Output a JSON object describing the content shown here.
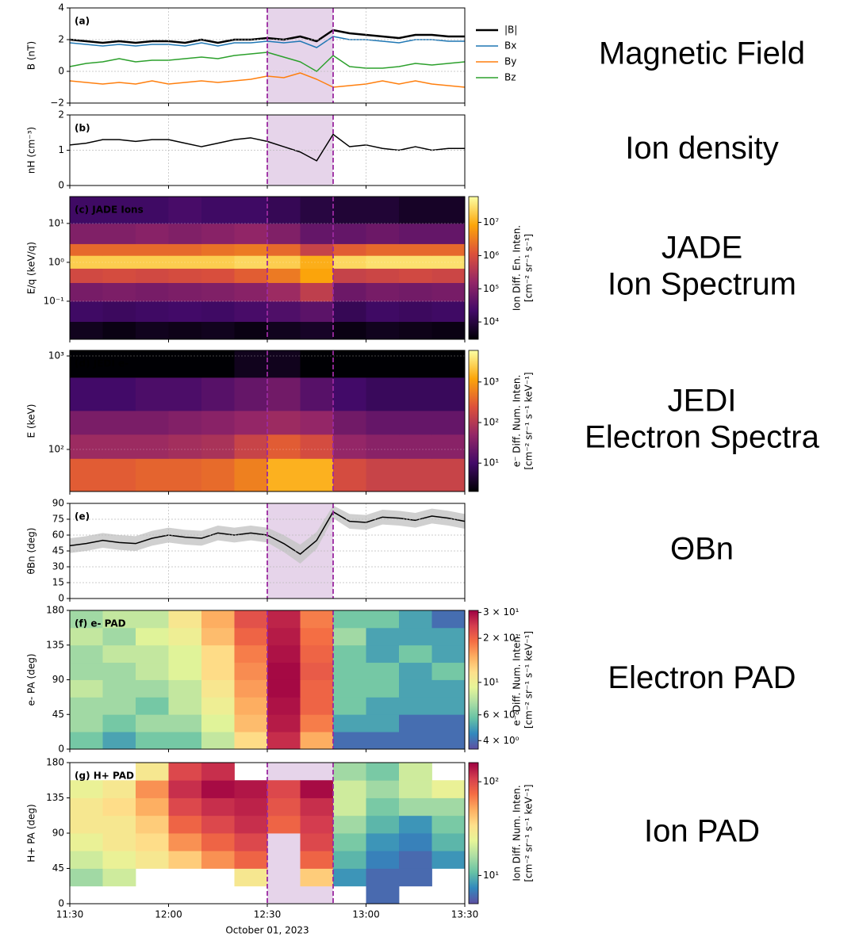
{
  "chart_data": [
    {
      "type": "line",
      "panel_label": "(a)",
      "ylabel": "B (nT)",
      "ylim": [
        -2,
        4
      ],
      "yticks": [
        {
          "value": -2,
          "label": "−2"
        },
        0,
        2,
        4
      ],
      "grid": true,
      "legend": "right-outside",
      "x": [
        "11:30",
        "11:35",
        "11:40",
        "11:45",
        "11:50",
        "11:55",
        "12:00",
        "12:05",
        "12:10",
        "12:15",
        "12:20",
        "12:25",
        "12:30",
        "12:35",
        "12:40",
        "12:45",
        "12:50",
        "12:55",
        "13:00",
        "13:05",
        "13:10",
        "13:15",
        "13:20",
        "13:25",
        "13:30"
      ],
      "series": [
        {
          "name": "|B|",
          "color": "#000000",
          "width": 2.5,
          "values": [
            2.0,
            1.9,
            1.8,
            1.9,
            1.8,
            1.9,
            1.9,
            1.8,
            2.0,
            1.8,
            2.0,
            2.0,
            2.1,
            2.0,
            2.2,
            1.9,
            2.6,
            2.4,
            2.3,
            2.2,
            2.1,
            2.3,
            2.3,
            2.2,
            2.2
          ]
        },
        {
          "name": "Bx",
          "color": "#1f77b4",
          "width": 1.5,
          "values": [
            1.8,
            1.7,
            1.6,
            1.7,
            1.6,
            1.7,
            1.7,
            1.6,
            1.8,
            1.6,
            1.8,
            1.8,
            1.9,
            1.8,
            1.9,
            1.5,
            2.2,
            2.0,
            2.0,
            1.9,
            1.8,
            2.0,
            2.0,
            1.9,
            1.9
          ]
        },
        {
          "name": "By",
          "color": "#ff7f0e",
          "width": 1.5,
          "values": [
            -0.6,
            -0.7,
            -0.8,
            -0.7,
            -0.8,
            -0.6,
            -0.8,
            -0.7,
            -0.6,
            -0.7,
            -0.6,
            -0.5,
            -0.3,
            -0.4,
            -0.1,
            -0.5,
            -1.0,
            -0.9,
            -0.8,
            -0.6,
            -0.8,
            -0.6,
            -0.8,
            -0.9,
            -1.0
          ]
        },
        {
          "name": "Bz",
          "color": "#2ca02c",
          "width": 1.5,
          "values": [
            0.3,
            0.5,
            0.6,
            0.8,
            0.6,
            0.7,
            0.7,
            0.8,
            0.9,
            0.8,
            1.0,
            1.1,
            1.2,
            0.9,
            0.6,
            0.0,
            1.0,
            0.3,
            0.2,
            0.2,
            0.3,
            0.5,
            0.4,
            0.5,
            0.6
          ]
        }
      ]
    },
    {
      "type": "line",
      "panel_label": "(b)",
      "ylabel": "nH (cm⁻³)",
      "ylim": [
        0,
        2
      ],
      "yticks": [
        0,
        1,
        2
      ],
      "grid": true,
      "x": [
        "11:30",
        "11:35",
        "11:40",
        "11:45",
        "11:50",
        "11:55",
        "12:00",
        "12:05",
        "12:10",
        "12:15",
        "12:20",
        "12:25",
        "12:30",
        "12:35",
        "12:40",
        "12:45",
        "12:50",
        "12:55",
        "13:00",
        "13:05",
        "13:10",
        "13:15",
        "13:20",
        "13:25",
        "13:30"
      ],
      "series": [
        {
          "color": "#000000",
          "width": 1.5,
          "values": [
            1.15,
            1.2,
            1.3,
            1.3,
            1.25,
            1.3,
            1.3,
            1.2,
            1.1,
            1.2,
            1.3,
            1.35,
            1.25,
            1.1,
            0.95,
            0.7,
            1.45,
            1.1,
            1.15,
            1.05,
            1.0,
            1.1,
            1.0,
            1.05,
            1.05
          ]
        }
      ]
    },
    {
      "type": "heatmap",
      "panel_label": "(c) JADE Ions",
      "ylabel": "E/q (keV/q)",
      "yscale": "log",
      "ylim": [
        0.0105,
        49
      ],
      "yticks": [
        {
          "value": 0.1,
          "label": "10⁻¹"
        },
        {
          "value": 1,
          "label": "10⁰"
        },
        {
          "value": 10,
          "label": "10¹"
        }
      ],
      "grid": true,
      "x_edges": [
        "11:30",
        "11:40",
        "11:50",
        "12:00",
        "12:10",
        "12:20",
        "12:30",
        "12:40",
        "12:50",
        "13:00",
        "13:10",
        "13:20",
        "13:30"
      ],
      "y_edges": [
        0.0105,
        0.03,
        0.1,
        0.3,
        0.7,
        1.5,
        3,
        10,
        49
      ],
      "values": [
        [
          5000,
          4000,
          5000,
          4500,
          5000,
          4000,
          5000,
          6000,
          4000,
          5000,
          4500,
          4000
        ],
        [
          20000,
          18000,
          20000,
          22000,
          20000,
          25000,
          30000,
          40000,
          15000,
          20000,
          18000,
          20000
        ],
        [
          80000,
          90000,
          80000,
          90000,
          100000,
          120000,
          200000,
          500000,
          60000,
          80000,
          70000,
          80000
        ],
        [
          800000,
          900000,
          800000,
          900000,
          1000000,
          1500000,
          3000000,
          8000000,
          600000,
          700000,
          800000,
          700000
        ],
        [
          20000000,
          20000000,
          20000000,
          20000000,
          20000000,
          25000000,
          20000000,
          10000000,
          25000000,
          30000000,
          30000000,
          30000000
        ],
        [
          2000000,
          2000000,
          2000000,
          2000000,
          2500000,
          3000000,
          2000000,
          600000,
          1500000,
          2000000,
          2000000,
          2000000
        ],
        [
          100000,
          100000,
          120000,
          100000,
          120000,
          150000,
          100000,
          50000,
          50000,
          60000,
          50000,
          50000
        ],
        [
          20000,
          20000,
          20000,
          25000,
          20000,
          20000,
          15000,
          10000,
          8000,
          8000,
          6000,
          6000
        ]
      ],
      "colormap": [
        "#000004",
        "#420a68",
        "#932667",
        "#dd513a",
        "#fca50a",
        "#fcffa4"
      ],
      "cscale": "log",
      "clim": [
        3000,
        60000000
      ],
      "cticks": [
        {
          "value": 10000,
          "label": "10⁴"
        },
        {
          "value": 100000,
          "label": "10⁵"
        },
        {
          "value": 1000000,
          "label": "10⁶"
        },
        {
          "value": 10000000,
          "label": "10⁷"
        }
      ],
      "colorbar_label": [
        "Ion Diff. En. Inten.",
        "[cm⁻² sr⁻¹ s⁻¹]"
      ]
    },
    {
      "type": "heatmap",
      "panel_label": "(d) JEDI e-",
      "ylabel": "E (keV)",
      "yscale": "log",
      "ylim": [
        35.5,
        1147
      ],
      "yticks": [
        {
          "value": 100,
          "label": "10²"
        },
        {
          "value": 1000,
          "label": "10³"
        }
      ],
      "grid": true,
      "x_edges": [
        "11:30",
        "11:40",
        "11:50",
        "12:00",
        "12:10",
        "12:20",
        "12:30",
        "12:40",
        "12:50",
        "13:00",
        "13:10",
        "13:20",
        "13:30"
      ],
      "y_edges": [
        35.5,
        80,
        145,
        260,
        590,
        1147
      ],
      "values": [
        [
          300,
          300,
          350,
          350,
          400,
          600,
          1500,
          1500,
          200,
          150,
          150,
          150
        ],
        [
          60,
          60,
          60,
          70,
          80,
          150,
          300,
          200,
          50,
          40,
          40,
          40
        ],
        [
          30,
          30,
          30,
          35,
          40,
          50,
          60,
          50,
          25,
          20,
          20,
          20
        ],
        [
          10,
          10,
          12,
          12,
          15,
          20,
          25,
          15,
          10,
          8,
          8,
          8
        ],
        [
          2,
          2,
          2,
          2,
          2,
          3,
          3,
          2,
          2,
          2,
          2,
          2
        ]
      ],
      "colormap": [
        "#000004",
        "#420a68",
        "#932667",
        "#dd513a",
        "#fca50a",
        "#fcffa4"
      ],
      "cscale": "log",
      "clim": [
        2,
        6000
      ],
      "cticks": [
        {
          "value": 10,
          "label": "10¹"
        },
        {
          "value": 100,
          "label": "10²"
        },
        {
          "value": 1000,
          "label": "10³"
        }
      ],
      "colorbar_label": [
        "e⁻ Diff. Num. Inten.",
        "[cm⁻² sr⁻¹ s⁻¹ keV⁻¹]"
      ]
    },
    {
      "type": "line",
      "panel_label": "(e)",
      "ylabel": "θBn (deg)",
      "ylim": [
        0,
        90
      ],
      "yticks": [
        0,
        15,
        30,
        45,
        60,
        75,
        90
      ],
      "grid": true,
      "band_color": "#c4c4c4",
      "x": [
        "11:30",
        "11:35",
        "11:40",
        "11:45",
        "11:50",
        "11:55",
        "12:00",
        "12:05",
        "12:10",
        "12:15",
        "12:20",
        "12:25",
        "12:30",
        "12:35",
        "12:40",
        "12:45",
        "12:50",
        "12:55",
        "13:00",
        "13:05",
        "13:10",
        "13:15",
        "13:20",
        "13:25",
        "13:30"
      ],
      "series": [
        {
          "color": "#000000",
          "width": 1.5,
          "values": [
            50,
            52,
            55,
            53,
            52,
            57,
            60,
            58,
            57,
            62,
            60,
            62,
            60,
            52,
            42,
            55,
            82,
            73,
            72,
            77,
            76,
            74,
            78,
            76,
            73
          ],
          "errors": [
            7,
            7,
            7,
            7,
            7,
            7,
            7,
            7,
            7,
            7,
            7,
            7,
            7,
            8,
            9,
            8,
            6,
            7,
            7,
            7,
            7,
            7,
            7,
            7,
            7
          ]
        }
      ]
    },
    {
      "type": "heatmap",
      "panel_label": "(f) e- PAD",
      "ylabel": "e- PA (deg)",
      "ylim": [
        0,
        180
      ],
      "yticks": [
        0,
        45,
        90,
        135,
        180
      ],
      "x_edges": [
        "11:30",
        "11:40",
        "11:50",
        "12:00",
        "12:10",
        "12:20",
        "12:30",
        "12:40",
        "12:50",
        "13:00",
        "13:10",
        "13:20",
        "13:30"
      ],
      "y_edges": [
        0,
        22.5,
        45,
        67.5,
        90,
        112.5,
        135,
        157.5,
        180
      ],
      "values": [
        [
          6,
          5,
          6,
          6,
          8,
          12,
          26,
          15,
          4,
          4,
          4,
          4
        ],
        [
          7,
          6,
          7,
          7,
          9,
          14,
          28,
          18,
          5,
          5,
          4,
          4
        ],
        [
          7,
          7,
          6,
          8,
          10,
          15,
          29,
          20,
          6,
          5,
          5,
          5
        ],
        [
          8,
          7,
          7,
          8,
          11,
          16,
          30,
          20,
          6,
          6,
          5,
          5
        ],
        [
          7,
          7,
          8,
          9,
          12,
          17,
          30,
          21,
          6,
          6,
          5,
          6
        ],
        [
          7,
          8,
          8,
          9,
          12,
          18,
          29,
          20,
          6,
          5,
          6,
          5
        ],
        [
          8,
          7,
          9,
          10,
          14,
          20,
          28,
          19,
          7,
          5,
          5,
          5
        ],
        [
          7,
          8,
          8,
          11,
          15,
          22,
          27,
          18,
          6,
          6,
          5,
          4
        ]
      ],
      "colormap": [
        "#5e4fa2",
        "#3288bd",
        "#66c2a5",
        "#abdda4",
        "#e6f598",
        "#fee08b",
        "#fdae61",
        "#f46d43",
        "#d53e4f",
        "#9e0142"
      ],
      "cscale": "log",
      "clim": [
        3.5,
        31
      ],
      "cticks": [
        {
          "value": 4,
          "label": "4 × 10⁰"
        },
        {
          "value": 6,
          "label": "6 × 10⁰"
        },
        {
          "value": 10,
          "label": "10¹"
        },
        {
          "value": 20,
          "label": "2 × 10¹"
        },
        {
          "value": 30,
          "label": "3 × 10¹"
        }
      ],
      "colorbar_label": [
        "e⁻ Diff. Num. Inten.",
        "[cm⁻² sr⁻¹ s⁻¹ keV⁻¹]"
      ]
    },
    {
      "type": "heatmap",
      "panel_label": "(g) H+ PAD",
      "ylabel": "H+ PA (deg)",
      "ylim": [
        0,
        180
      ],
      "yticks": [
        0,
        45,
        90,
        135,
        180
      ],
      "x_edges": [
        "11:30",
        "11:40",
        "11:50",
        "12:00",
        "12:10",
        "12:20",
        "12:30",
        "12:40",
        "12:50",
        "13:00",
        "13:10",
        "13:20",
        "13:30"
      ],
      "y_edges": [
        0,
        22.5,
        45,
        67.5,
        90,
        112.5,
        135,
        157.5,
        180
      ],
      "values": [
        [
          null,
          null,
          null,
          null,
          null,
          null,
          null,
          null,
          null,
          6,
          null,
          null
        ],
        [
          15,
          20,
          null,
          null,
          null,
          30,
          null,
          40,
          8,
          6,
          6,
          null
        ],
        [
          20,
          25,
          30,
          40,
          60,
          80,
          null,
          80,
          10,
          7,
          6,
          8
        ],
        [
          25,
          30,
          35,
          60,
          80,
          100,
          null,
          100,
          12,
          8,
          7,
          10
        ],
        [
          30,
          30,
          40,
          80,
          100,
          120,
          80,
          110,
          15,
          10,
          8,
          12
        ],
        [
          30,
          35,
          50,
          100,
          120,
          130,
          90,
          120,
          20,
          12,
          15,
          15
        ],
        [
          25,
          30,
          60,
          120,
          150,
          140,
          100,
          150,
          20,
          15,
          20,
          25
        ],
        [
          null,
          null,
          30,
          100,
          120,
          null,
          null,
          null,
          15,
          12,
          20,
          null
        ]
      ],
      "colormap": [
        "#5e4fa2",
        "#3288bd",
        "#66c2a5",
        "#abdda4",
        "#e6f598",
        "#fee08b",
        "#fdae61",
        "#f46d43",
        "#d53e4f",
        "#9e0142"
      ],
      "cscale": "log",
      "clim": [
        5,
        160
      ],
      "cticks": [
        {
          "value": 10,
          "label": "10¹"
        },
        {
          "value": 100,
          "label": "10²"
        }
      ],
      "colorbar_label": [
        "Ion Diff. Num. Inten.",
        "[cm⁻² sr⁻¹ s⁻¹ keV⁻¹]"
      ],
      "xlim": [
        "11:30",
        "13:30"
      ],
      "xticks": [
        "11:30",
        "12:00",
        "12:30",
        "13:00",
        "13:30"
      ],
      "xlabel": "October 01, 2023"
    }
  ],
  "highlight": {
    "x": [
      "12:30",
      "12:50"
    ],
    "fill": "#e6d4ea",
    "line_color": "#9b2aa0"
  },
  "side_labels": [
    [
      "Magnetic Field"
    ],
    [
      "Ion density"
    ],
    [
      "JADE",
      "Ion Spectrum"
    ],
    [
      "JEDI",
      "Electron  Spectra"
    ],
    [
      "ΘBn"
    ],
    [
      "Electron PAD"
    ],
    [
      "Ion PAD"
    ]
  ]
}
